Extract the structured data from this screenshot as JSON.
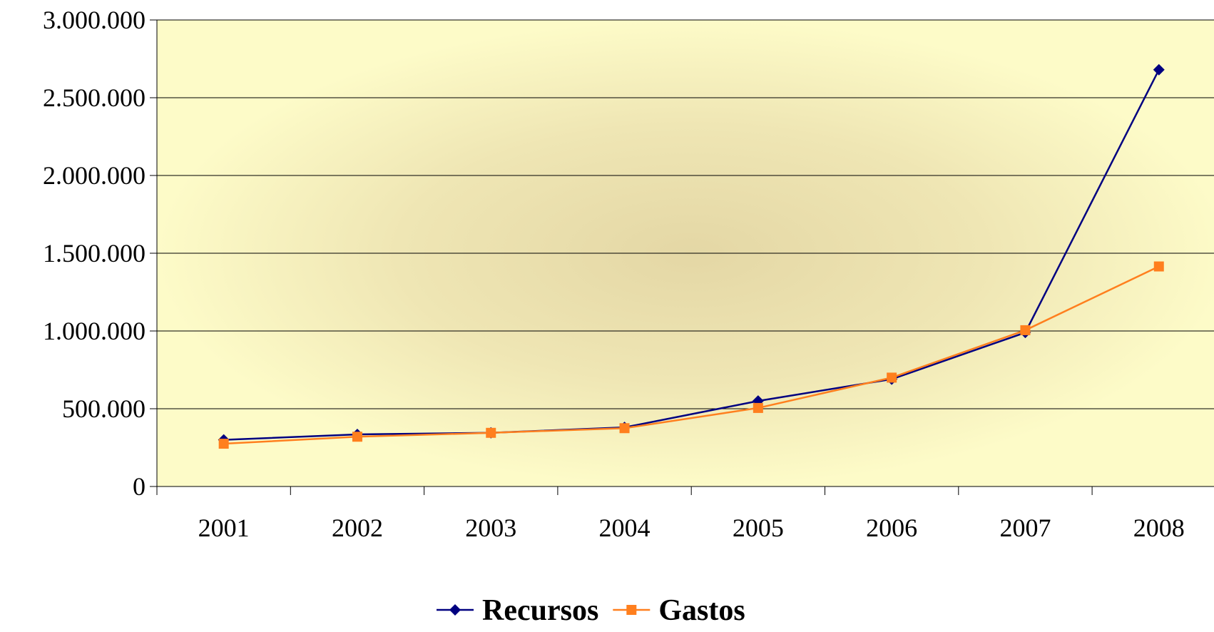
{
  "chart_data": {
    "type": "line",
    "categories": [
      "2001",
      "2002",
      "2003",
      "2004",
      "2005",
      "2006",
      "2007",
      "2008"
    ],
    "series": [
      {
        "name": "Recursos",
        "color": "#000080",
        "values": [
          300000,
          335000,
          345000,
          380000,
          550000,
          690000,
          990000,
          2680000
        ]
      },
      {
        "name": "Gastos",
        "color": "#ff7f1e",
        "values": [
          275000,
          320000,
          345000,
          375000,
          505000,
          700000,
          1005000,
          1415000
        ]
      }
    ],
    "ylim": [
      0,
      3000000
    ],
    "yticks": [
      0,
      {
        "value": 500000,
        "label": "500.000"
      },
      {
        "value": 1000000,
        "label": "1.000.000"
      },
      {
        "value": 1500000,
        "label": "1.500.000"
      },
      {
        "value": 2000000,
        "label": "2.000.000"
      },
      {
        "value": 2500000,
        "label": "2.500.000"
      },
      {
        "value": 3000000,
        "label": "3.000.000"
      }
    ],
    "grid": true,
    "legend": "bottom"
  }
}
